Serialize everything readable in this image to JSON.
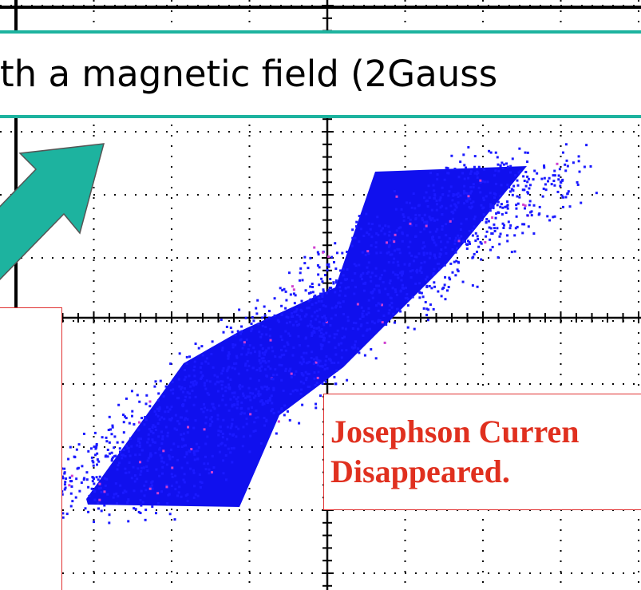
{
  "banner": {
    "text": "th a magnetic field (2Gauss"
  },
  "note": {
    "lines": [
      "Josephson Curren",
      "Disappeared."
    ]
  }
}
